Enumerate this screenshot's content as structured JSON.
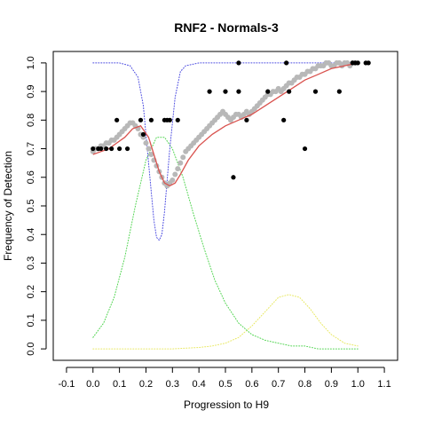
{
  "chart_data": {
    "type": "scatter",
    "title": "RNF2 - Normals-3",
    "xlabel": "Progression to H9",
    "ylabel": "Frequency of Detection",
    "xlim": [
      -0.15,
      1.15
    ],
    "ylim": [
      -0.04,
      1.04
    ],
    "xticks": [
      "-0.1",
      "0.0",
      "0.1",
      "0.2",
      "0.3",
      "0.4",
      "0.5",
      "0.6",
      "0.7",
      "0.8",
      "0.9",
      "1.0",
      "1.1"
    ],
    "yticks": [
      "0.0",
      "0.1",
      "0.2",
      "0.3",
      "0.4",
      "0.5",
      "0.6",
      "0.7",
      "0.8",
      "0.9",
      "1.0"
    ],
    "grid": false,
    "legend": "none",
    "series": [
      {
        "style": "grey-points",
        "color": "#b8b8b8",
        "x": [
          0.0,
          0.01,
          0.02,
          0.03,
          0.04,
          0.05,
          0.06,
          0.07,
          0.08,
          0.09,
          0.1,
          0.11,
          0.12,
          0.13,
          0.14,
          0.15,
          0.16,
          0.17,
          0.18,
          0.19,
          0.2,
          0.21,
          0.22,
          0.23,
          0.24,
          0.25,
          0.26,
          0.27,
          0.28,
          0.29,
          0.3,
          0.31,
          0.32,
          0.33,
          0.34,
          0.35,
          0.36,
          0.37,
          0.38,
          0.39,
          0.4,
          0.41,
          0.42,
          0.43,
          0.44,
          0.45,
          0.46,
          0.47,
          0.48,
          0.49,
          0.5,
          0.51,
          0.52,
          0.53,
          0.54,
          0.55,
          0.56,
          0.57,
          0.58,
          0.59,
          0.6,
          0.61,
          0.62,
          0.63,
          0.64,
          0.65,
          0.66,
          0.67,
          0.68,
          0.69,
          0.7,
          0.71,
          0.72,
          0.73,
          0.74,
          0.75,
          0.76,
          0.77,
          0.78,
          0.79,
          0.8,
          0.81,
          0.82,
          0.83,
          0.84,
          0.85,
          0.86,
          0.87,
          0.88,
          0.89,
          0.9,
          0.91,
          0.92,
          0.93,
          0.94,
          0.95,
          0.96,
          0.97,
          0.98,
          0.99
        ],
        "y": [
          0.69,
          0.7,
          0.7,
          0.71,
          0.71,
          0.72,
          0.72,
          0.73,
          0.73,
          0.74,
          0.75,
          0.76,
          0.77,
          0.78,
          0.79,
          0.79,
          0.78,
          0.77,
          0.75,
          0.74,
          0.72,
          0.7,
          0.68,
          0.66,
          0.64,
          0.62,
          0.6,
          0.58,
          0.57,
          0.58,
          0.59,
          0.61,
          0.63,
          0.65,
          0.67,
          0.69,
          0.7,
          0.71,
          0.72,
          0.73,
          0.74,
          0.75,
          0.76,
          0.77,
          0.78,
          0.79,
          0.8,
          0.81,
          0.82,
          0.83,
          0.82,
          0.81,
          0.8,
          0.81,
          0.82,
          0.82,
          0.81,
          0.82,
          0.83,
          0.82,
          0.83,
          0.84,
          0.85,
          0.86,
          0.87,
          0.88,
          0.89,
          0.89,
          0.9,
          0.9,
          0.91,
          0.9,
          0.91,
          0.92,
          0.93,
          0.93,
          0.94,
          0.95,
          0.95,
          0.96,
          0.96,
          0.97,
          0.97,
          0.98,
          0.98,
          0.99,
          0.99,
          0.99,
          1.0,
          1.0,
          0.99,
          0.99,
          1.0,
          1.0,
          0.99,
          1.0,
          1.0,
          0.99,
          1.0,
          1.0
        ]
      },
      {
        "style": "black-points",
        "color": "#000000",
        "x": [
          0.0,
          0.02,
          0.03,
          0.05,
          0.07,
          0.09,
          0.1,
          0.13,
          0.18,
          0.19,
          0.22,
          0.27,
          0.28,
          0.29,
          0.32,
          0.44,
          0.5,
          0.53,
          0.55,
          0.55,
          0.58,
          0.66,
          0.72,
          0.73,
          0.74,
          0.8,
          0.84,
          0.93,
          0.98,
          0.99,
          1.0,
          1.03,
          1.04
        ],
        "y": [
          0.7,
          0.7,
          0.7,
          0.7,
          0.7,
          0.8,
          0.7,
          0.7,
          0.8,
          0.75,
          0.8,
          0.8,
          0.8,
          0.8,
          0.8,
          0.9,
          0.9,
          0.6,
          1.0,
          0.9,
          0.8,
          0.9,
          0.8,
          1.0,
          0.9,
          0.7,
          0.9,
          0.9,
          1.0,
          1.0,
          1.0,
          1.0,
          1.0
        ]
      },
      {
        "style": "red-line",
        "color": "#d9534f",
        "x": [
          0.0,
          0.03,
          0.06,
          0.09,
          0.12,
          0.15,
          0.18,
          0.21,
          0.23,
          0.25,
          0.27,
          0.29,
          0.31,
          0.33,
          0.36,
          0.4,
          0.45,
          0.5,
          0.55,
          0.6,
          0.65,
          0.7,
          0.75,
          0.8,
          0.85,
          0.9,
          0.95,
          1.0
        ],
        "y": [
          0.68,
          0.69,
          0.7,
          0.72,
          0.74,
          0.77,
          0.78,
          0.74,
          0.68,
          0.62,
          0.58,
          0.57,
          0.58,
          0.61,
          0.66,
          0.71,
          0.75,
          0.78,
          0.8,
          0.82,
          0.85,
          0.88,
          0.91,
          0.94,
          0.96,
          0.98,
          0.99,
          1.0
        ]
      },
      {
        "style": "blue-dotted",
        "color": "#4a4ae0",
        "x": [
          0.0,
          0.05,
          0.1,
          0.14,
          0.17,
          0.19,
          0.21,
          0.23,
          0.24,
          0.25,
          0.26,
          0.27,
          0.29,
          0.31,
          0.33,
          0.35,
          0.4,
          0.5,
          0.7,
          1.0
        ],
        "y": [
          1.0,
          1.0,
          1.0,
          0.99,
          0.95,
          0.85,
          0.65,
          0.45,
          0.39,
          0.38,
          0.4,
          0.48,
          0.7,
          0.88,
          0.97,
          0.99,
          1.0,
          1.0,
          1.0,
          1.0
        ]
      },
      {
        "style": "green-dotted",
        "color": "#4fd44f",
        "x": [
          0.0,
          0.04,
          0.08,
          0.12,
          0.16,
          0.2,
          0.24,
          0.27,
          0.3,
          0.34,
          0.38,
          0.42,
          0.46,
          0.5,
          0.55,
          0.6,
          0.65,
          0.7,
          0.75,
          0.8,
          0.85,
          0.9,
          0.95,
          1.0
        ],
        "y": [
          0.04,
          0.09,
          0.18,
          0.32,
          0.5,
          0.66,
          0.74,
          0.74,
          0.7,
          0.6,
          0.47,
          0.35,
          0.24,
          0.16,
          0.09,
          0.05,
          0.03,
          0.02,
          0.01,
          0.01,
          0.0,
          0.0,
          0.0,
          0.0
        ]
      },
      {
        "style": "yellow-dotted",
        "color": "#e8e860",
        "x": [
          0.0,
          0.3,
          0.4,
          0.45,
          0.5,
          0.55,
          0.6,
          0.65,
          0.7,
          0.74,
          0.78,
          0.82,
          0.86,
          0.9,
          0.95,
          1.0
        ],
        "y": [
          0.0,
          0.0,
          0.005,
          0.01,
          0.02,
          0.04,
          0.08,
          0.13,
          0.18,
          0.19,
          0.18,
          0.14,
          0.09,
          0.05,
          0.02,
          0.01
        ]
      }
    ]
  }
}
